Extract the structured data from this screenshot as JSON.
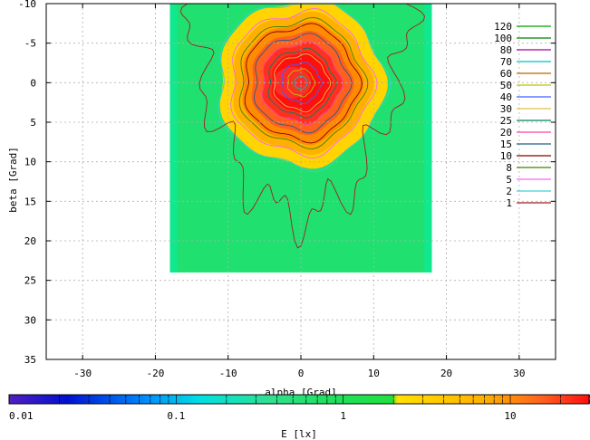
{
  "chart_data": {
    "type": "heatmap",
    "xlabel": "alpha [Grad]",
    "ylabel": "beta [Grad]",
    "colorbar_label": "E [lx]",
    "xlim": [
      -35,
      35
    ],
    "ylim": [
      -10,
      35
    ],
    "y_axis_inverted": true,
    "x_ticks": [
      -30,
      -20,
      -10,
      0,
      10,
      20,
      30
    ],
    "y_ticks": [
      -10,
      -5,
      0,
      5,
      10,
      15,
      20,
      25,
      30,
      35
    ],
    "x_tick_labels": [
      "-30",
      "-20",
      "-10",
      "0",
      "10",
      "20",
      "30"
    ],
    "y_tick_labels": [
      "-10",
      "-5",
      "0",
      "5",
      "10",
      "15",
      "20",
      "25",
      "30",
      "35"
    ],
    "grid": true,
    "data_extent": {
      "alpha": [
        -18,
        18
      ],
      "beta": [
        -10,
        24
      ]
    },
    "peak": {
      "alpha": 0,
      "beta": 0
    },
    "colorbar": {
      "scale": "log",
      "range": [
        0.01,
        30
      ],
      "tick_labels": [
        "0.01",
        "0.1",
        "1",
        "10"
      ],
      "tick_values": [
        0.01,
        0.1,
        1,
        10
      ]
    },
    "contour_levels": [
      {
        "level": "120",
        "color": "#00a000"
      },
      {
        "level": "100",
        "color": "#008000"
      },
      {
        "level": "80",
        "color": "#a000a0"
      },
      {
        "level": "70",
        "color": "#00c0c0"
      },
      {
        "level": "60",
        "color": "#c06000"
      },
      {
        "level": "50",
        "color": "#c0c000"
      },
      {
        "level": "40",
        "color": "#4060ff"
      },
      {
        "level": "30",
        "color": "#e0c040"
      },
      {
        "level": "25",
        "color": "#008060"
      },
      {
        "level": "20",
        "color": "#ff40a0"
      },
      {
        "level": "15",
        "color": "#206080"
      },
      {
        "level": "10",
        "color": "#800000"
      },
      {
        "level": "8",
        "color": "#408000"
      },
      {
        "level": "5",
        "color": "#ff60ff"
      },
      {
        "level": "2",
        "color": "#40d0d0"
      },
      {
        "level": "1",
        "color": "#a02020"
      }
    ],
    "regions": [
      {
        "min_E": 1.8,
        "color": "#ffd400"
      },
      {
        "min_E": 3.5,
        "color": "#ffb000"
      },
      {
        "min_E": 6.0,
        "color": "#ff8c00"
      },
      {
        "min_E": 9.0,
        "color": "#ff6020"
      },
      {
        "min_E": 14.0,
        "color": "#ff3020"
      },
      {
        "min_E": 20.0,
        "color": "#ff1010"
      }
    ],
    "background_color": "#20e070",
    "colors": {
      "map_edge": "#10e890",
      "axis": "#000000",
      "grid": "#b0b0b0"
    }
  }
}
